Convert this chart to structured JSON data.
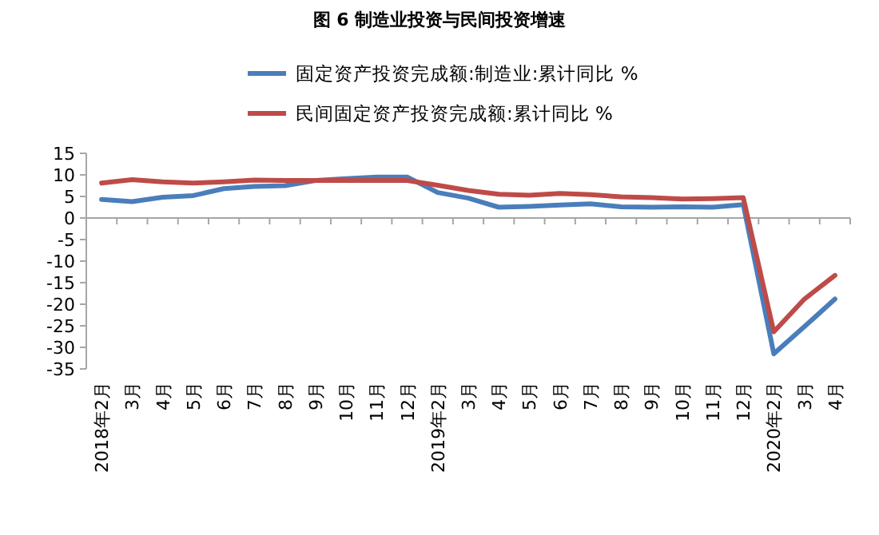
{
  "chart_data": {
    "type": "line",
    "title": "图 6 制造业投资与民间投资增速",
    "categories": [
      "2018年2月",
      "3月",
      "4月",
      "5月",
      "6月",
      "7月",
      "8月",
      "9月",
      "10月",
      "11月",
      "12月",
      "2019年2月",
      "3月",
      "4月",
      "5月",
      "6月",
      "7月",
      "8月",
      "9月",
      "10月",
      "11月",
      "12月",
      "2020年2月",
      "3月",
      "4月"
    ],
    "series": [
      {
        "name": "固定资产投资完成额:制造业:累计同比 %",
        "color": "#4a7ebb",
        "values": [
          4.3,
          3.8,
          4.8,
          5.2,
          6.8,
          7.3,
          7.5,
          8.7,
          9.1,
          9.5,
          9.5,
          5.9,
          4.6,
          2.5,
          2.7,
          3.0,
          3.3,
          2.6,
          2.5,
          2.6,
          2.5,
          3.1,
          -31.5,
          -25.2,
          -18.8
        ]
      },
      {
        "name": "民间固定资产投资完成额:累计同比 %",
        "color": "#be4b48",
        "values": [
          8.1,
          8.9,
          8.4,
          8.1,
          8.4,
          8.8,
          8.7,
          8.7,
          8.7,
          8.7,
          8.7,
          7.6,
          6.4,
          5.5,
          5.3,
          5.7,
          5.4,
          4.9,
          4.7,
          4.4,
          4.5,
          4.7,
          -26.4,
          -18.8,
          -13.3
        ]
      }
    ],
    "ylim": [
      -35,
      15
    ],
    "yticks": [
      15,
      10,
      5,
      0,
      -5,
      -10,
      -15,
      -20,
      -25,
      -30,
      -35
    ],
    "legend": "top",
    "marker": "none",
    "line_style": "solid"
  }
}
